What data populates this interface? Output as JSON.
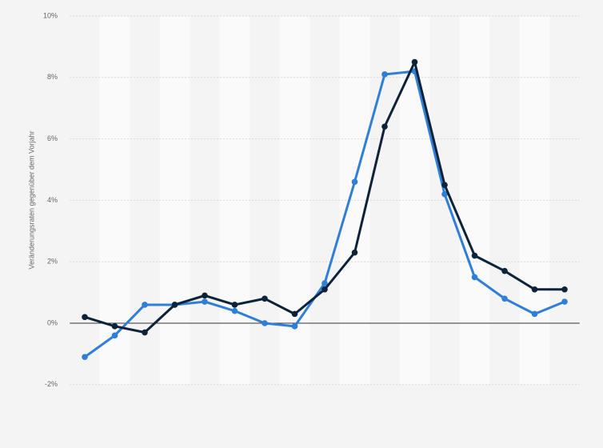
{
  "chart_data": {
    "type": "line",
    "y_axis_label": "Veränderungsraten gegenüber dem Vorjahr",
    "categories": [
      null,
      null,
      null,
      null,
      null,
      null,
      null,
      null,
      null,
      null,
      null,
      null,
      null,
      null,
      null,
      null,
      null
    ],
    "series": [
      {
        "color": "#2f7ed8",
        "values": [
          -1.1,
          -0.4,
          0.6,
          0.6,
          0.7,
          0.4,
          0.0,
          -0.1,
          1.3,
          4.6,
          8.1,
          8.2,
          4.2,
          1.5,
          0.8,
          0.3,
          0.7
        ]
      },
      {
        "color": "#0d233a",
        "values": [
          0.2,
          -0.1,
          -0.3,
          0.6,
          0.9,
          0.6,
          0.8,
          0.3,
          1.1,
          2.3,
          6.4,
          8.5,
          4.5,
          2.2,
          1.7,
          1.1,
          1.1
        ]
      }
    ],
    "ylim": [
      -2,
      10
    ],
    "yticks": [
      {
        "value": -2,
        "label": "-2%"
      },
      {
        "value": 0,
        "label": "0%"
      },
      {
        "value": 2,
        "label": "2%"
      },
      {
        "value": 4,
        "label": "4%"
      },
      {
        "value": 6,
        "label": "6%"
      },
      {
        "value": 8,
        "label": "8%"
      },
      {
        "value": 10,
        "label": "10%"
      }
    ],
    "grid": true
  }
}
